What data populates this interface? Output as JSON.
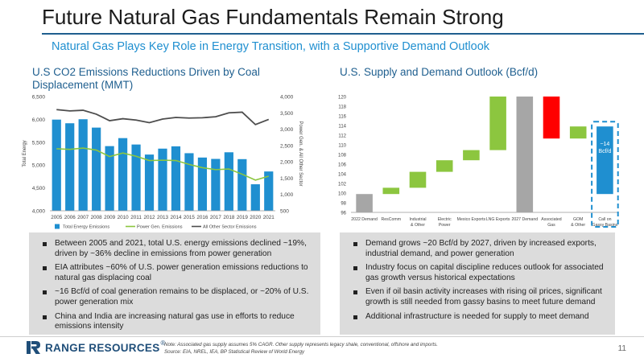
{
  "header": {
    "title": "Future Natural Gas Fundamentals Remain Strong",
    "subtitle": "Natural Gas Plays Key Role in Energy Transition, with a Supportive Demand Outlook"
  },
  "left_panel": {
    "title": "U.S CO2 Emissions Reductions Driven by Coal Displacement (MMT)",
    "bullets": [
      "Between 2005 and 2021, total U.S. energy emissions declined ~19%, driven by ~36% decline in emissions from power generation",
      "EIA attributes ~60% of U.S. power generation emissions reductions to natural gas displacing coal",
      "~16 Bcf/d of coal generation remains to be displaced, or ~20% of U.S. power generation mix",
      "China and India are increasing natural gas use in efforts to reduce emissions intensity"
    ]
  },
  "right_panel": {
    "title": "U.S. Supply and Demand Outlook (Bcf/d)",
    "bullets": [
      "Demand grows ~20 Bcf/d by 2027, driven by increased exports, industrial demand, and power generation",
      "Industry focus on capital discipline reduces outlook for associated gas growth versus historical expectations",
      "Even if oil basin activity increases with rising oil prices, significant growth is still needed from gassy basins to meet future demand",
      "Additional infrastructure is needed for supply to meet demand"
    ]
  },
  "footer": {
    "logo_text": "RANGE RESOURCES",
    "logo_mark": "®",
    "note_line1": "Note: Associated gas supply assumes 5% CAGR. Other supply represents legacy shale, conventional, offshore and imports.",
    "note_line2": "Source: EIA, NREL, IEA, BP Statistical Review of World Energy",
    "page_number": "11"
  },
  "chart_data": [
    {
      "type": "bar",
      "title": "U.S CO2 Emissions Reductions Driven by Coal Displacement (MMT)",
      "categories": [
        "2005",
        "2006",
        "2007",
        "2008",
        "2009",
        "2010",
        "2011",
        "2012",
        "2013",
        "2014",
        "2015",
        "2016",
        "2017",
        "2018",
        "2019",
        "2020",
        "2021"
      ],
      "ylabel": "Total Energy",
      "y2label": "Power Gen. & All Other Sector",
      "ylim": [
        4000,
        6500
      ],
      "y2lim": [
        500,
        4000
      ],
      "yticks": [
        "4,000",
        "4,500",
        "5,000",
        "5,500",
        "6,000",
        "6,500"
      ],
      "y2ticks": [
        "500",
        "1,000",
        "1,500",
        "2,000",
        "2,500",
        "3,000",
        "3,500",
        "4,000"
      ],
      "series": [
        {
          "name": "Total Energy Emissions",
          "kind": "bar",
          "axis": "left",
          "color": "#1f8fd0",
          "values": [
            5995,
            5915,
            6003,
            5820,
            5415,
            5590,
            5450,
            5230,
            5360,
            5410,
            5260,
            5165,
            5135,
            5280,
            5130,
            4580,
            4860
          ]
        },
        {
          "name": "Power Gen. Emissions",
          "kind": "line",
          "axis": "right",
          "color": "#8cc63f",
          "values": [
            2400,
            2380,
            2420,
            2360,
            2160,
            2270,
            2170,
            2040,
            2050,
            2040,
            1920,
            1820,
            1760,
            1780,
            1620,
            1440,
            1560
          ]
        },
        {
          "name": "All Other Sector Emissions",
          "kind": "line",
          "axis": "right",
          "color": "#4d4d4d",
          "values": [
            3600,
            3560,
            3580,
            3460,
            3260,
            3320,
            3280,
            3200,
            3310,
            3360,
            3340,
            3350,
            3380,
            3500,
            3520,
            3140,
            3300
          ]
        }
      ],
      "legend": "bottom"
    },
    {
      "type": "waterfall",
      "title": "U.S. Supply and Demand Outlook (Bcf/d)",
      "ylim": [
        96,
        120
      ],
      "yticks": [
        "96",
        "98",
        "100",
        "102",
        "104",
        "106",
        "108",
        "110",
        "112",
        "114",
        "116",
        "118",
        "120"
      ],
      "bars": [
        {
          "label": "2022 Demand",
          "low": 96,
          "high": 99.8,
          "color": "#a6a6a6"
        },
        {
          "label": "ResComm",
          "low": 99.8,
          "high": 101.1,
          "color": "#8cc63f"
        },
        {
          "label": "Industrial & Other",
          "low": 101.1,
          "high": 104.4,
          "color": "#8cc63f"
        },
        {
          "label": "Electric Power",
          "low": 104.4,
          "high": 106.8,
          "color": "#8cc63f"
        },
        {
          "label": "Mexico Exports",
          "low": 106.8,
          "high": 108.9,
          "color": "#8cc63f"
        },
        {
          "label": "LNG Exports",
          "low": 108.9,
          "high": 120,
          "color": "#8cc63f"
        },
        {
          "label": "2027 Demand",
          "low": 96,
          "high": 120,
          "color": "#a6a6a6"
        },
        {
          "label": "Associated Gas",
          "low": 111.3,
          "high": 120,
          "color": "#ff0000"
        },
        {
          "label": "GOM & Other",
          "low": 111.3,
          "high": 113.8,
          "color": "#8cc63f"
        },
        {
          "label": "Call on Gassy Basins",
          "low": 99.8,
          "high": 113.8,
          "color": "#1f8fd0"
        }
      ],
      "annotation": "~14 Bcf/d"
    }
  ]
}
